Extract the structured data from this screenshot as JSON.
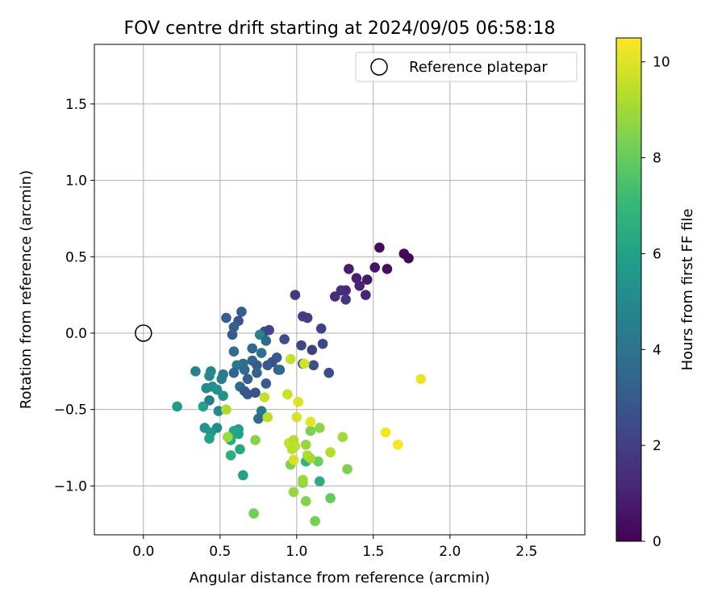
{
  "chart_data": {
    "type": "scatter",
    "title": "FOV centre drift starting at 2024/09/05 06:58:18",
    "xlabel": "Angular distance from reference (arcmin)",
    "ylabel": "Rotation from reference (arcmin)",
    "xlim": [
      -0.32,
      2.88
    ],
    "ylim": [
      -1.32,
      1.89
    ],
    "xticks": [
      0.0,
      0.5,
      1.0,
      1.5,
      2.0,
      2.5
    ],
    "xtick_labels": [
      "0.0",
      "0.5",
      "1.0",
      "1.5",
      "2.0",
      "2.5"
    ],
    "yticks": [
      -1.0,
      -0.5,
      0.0,
      0.5,
      1.0,
      1.5
    ],
    "ytick_labels": [
      "−1.0",
      "−0.5",
      "0.0",
      "0.5",
      "1.0",
      "1.5"
    ],
    "grid": true,
    "legend": {
      "position": "upper right",
      "entries": [
        {
          "label": "Reference platepar",
          "marker": "open-circle"
        }
      ]
    },
    "reference_point": {
      "x": 0.0,
      "y": 0.0
    },
    "colorbar": {
      "label": "Hours from first FF file",
      "colormap": "viridis",
      "range": [
        0,
        10.5
      ],
      "ticks": [
        0,
        2,
        4,
        6,
        8,
        10
      ],
      "tick_labels": [
        "0",
        "2",
        "4",
        "6",
        "8",
        "10"
      ],
      "colors": [
        "#440154",
        "#482878",
        "#3e4989",
        "#31688e",
        "#26828e",
        "#1f9e89",
        "#35b779",
        "#6ece58",
        "#b5de2b",
        "#fde725"
      ]
    },
    "points": [
      {
        "x": 1.54,
        "y": 0.56,
        "c": 0.3
      },
      {
        "x": 1.7,
        "y": 0.52,
        "c": 0.2
      },
      {
        "x": 1.73,
        "y": 0.49,
        "c": 0.1
      },
      {
        "x": 1.59,
        "y": 0.42,
        "c": 0.4
      },
      {
        "x": 1.51,
        "y": 0.43,
        "c": 0.6
      },
      {
        "x": 1.34,
        "y": 0.42,
        "c": 0.8
      },
      {
        "x": 1.39,
        "y": 0.36,
        "c": 0.9
      },
      {
        "x": 1.46,
        "y": 0.35,
        "c": 0.7
      },
      {
        "x": 1.41,
        "y": 0.31,
        "c": 1.0
      },
      {
        "x": 1.32,
        "y": 0.28,
        "c": 1.2
      },
      {
        "x": 1.29,
        "y": 0.28,
        "c": 1.5
      },
      {
        "x": 1.45,
        "y": 0.25,
        "c": 1.1
      },
      {
        "x": 1.25,
        "y": 0.24,
        "c": 1.3
      },
      {
        "x": 1.32,
        "y": 0.22,
        "c": 1.7
      },
      {
        "x": 0.99,
        "y": 0.25,
        "c": 1.8
      },
      {
        "x": 1.04,
        "y": 0.11,
        "c": 2.0
      },
      {
        "x": 1.07,
        "y": 0.1,
        "c": 1.9
      },
      {
        "x": 1.16,
        "y": 0.03,
        "c": 2.1
      },
      {
        "x": 0.64,
        "y": 0.14,
        "c": 3.0
      },
      {
        "x": 0.62,
        "y": 0.08,
        "c": 2.8
      },
      {
        "x": 0.54,
        "y": 0.1,
        "c": 3.2
      },
      {
        "x": 0.59,
        "y": 0.04,
        "c": 3.3
      },
      {
        "x": 0.58,
        "y": -0.01,
        "c": 3.0
      },
      {
        "x": 0.79,
        "y": 0.01,
        "c": 2.4
      },
      {
        "x": 0.82,
        "y": 0.02,
        "c": 2.2
      },
      {
        "x": 0.76,
        "y": -0.01,
        "c": 4.6
      },
      {
        "x": 0.92,
        "y": -0.04,
        "c": 2.5
      },
      {
        "x": 0.8,
        "y": -0.05,
        "c": 3.6
      },
      {
        "x": 1.03,
        "y": -0.08,
        "c": 2.2
      },
      {
        "x": 1.1,
        "y": -0.11,
        "c": 2.0
      },
      {
        "x": 1.17,
        "y": -0.07,
        "c": 2.3
      },
      {
        "x": 0.71,
        "y": -0.1,
        "c": 3.5
      },
      {
        "x": 0.59,
        "y": -0.12,
        "c": 3.8
      },
      {
        "x": 0.77,
        "y": -0.13,
        "c": 4.0
      },
      {
        "x": 0.87,
        "y": -0.16,
        "c": 3.1
      },
      {
        "x": 0.84,
        "y": -0.19,
        "c": 2.7
      },
      {
        "x": 0.71,
        "y": -0.18,
        "c": 3.4
      },
      {
        "x": 0.74,
        "y": -0.21,
        "c": 3.1
      },
      {
        "x": 0.65,
        "y": -0.2,
        "c": 3.7
      },
      {
        "x": 0.61,
        "y": -0.21,
        "c": 4.2
      },
      {
        "x": 0.81,
        "y": -0.21,
        "c": 2.9
      },
      {
        "x": 0.88,
        "y": -0.24,
        "c": 3.0
      },
      {
        "x": 1.04,
        "y": -0.2,
        "c": 2.4
      },
      {
        "x": 1.11,
        "y": -0.21,
        "c": 2.6
      },
      {
        "x": 1.21,
        "y": -0.26,
        "c": 2.5
      },
      {
        "x": 0.66,
        "y": -0.24,
        "c": 3.6
      },
      {
        "x": 0.59,
        "y": -0.26,
        "c": 3.4
      },
      {
        "x": 0.74,
        "y": -0.26,
        "c": 3.3
      },
      {
        "x": 0.89,
        "y": -0.24,
        "c": 3.5
      },
      {
        "x": 0.68,
        "y": -0.3,
        "c": 3.2
      },
      {
        "x": 0.52,
        "y": -0.27,
        "c": 4.3
      },
      {
        "x": 0.51,
        "y": -0.3,
        "c": 4.4
      },
      {
        "x": 0.44,
        "y": -0.25,
        "c": 4.8
      },
      {
        "x": 0.43,
        "y": -0.28,
        "c": 5.0
      },
      {
        "x": 0.34,
        "y": -0.25,
        "c": 4.6
      },
      {
        "x": 0.8,
        "y": -0.33,
        "c": 3.0
      },
      {
        "x": 0.63,
        "y": -0.35,
        "c": 3.6
      },
      {
        "x": 0.45,
        "y": -0.35,
        "c": 5.2
      },
      {
        "x": 0.41,
        "y": -0.36,
        "c": 4.9
      },
      {
        "x": 0.48,
        "y": -0.37,
        "c": 5.3
      },
      {
        "x": 0.66,
        "y": -0.38,
        "c": 3.0
      },
      {
        "x": 0.68,
        "y": -0.4,
        "c": 2.9
      },
      {
        "x": 0.73,
        "y": -0.39,
        "c": 2.7
      },
      {
        "x": 0.43,
        "y": -0.44,
        "c": 4.4
      },
      {
        "x": 0.52,
        "y": -0.41,
        "c": 5.4
      },
      {
        "x": 0.77,
        "y": -0.51,
        "c": 4.2
      },
      {
        "x": 0.75,
        "y": -0.56,
        "c": 3.6
      },
      {
        "x": 0.49,
        "y": -0.51,
        "c": 4.9
      },
      {
        "x": 0.22,
        "y": -0.48,
        "c": 5.8
      },
      {
        "x": 0.39,
        "y": -0.48,
        "c": 6.0
      },
      {
        "x": 0.4,
        "y": -0.62,
        "c": 5.4
      },
      {
        "x": 0.48,
        "y": -0.62,
        "c": 5.1
      },
      {
        "x": 0.44,
        "y": -0.65,
        "c": 5.5
      },
      {
        "x": 0.43,
        "y": -0.69,
        "c": 6.0
      },
      {
        "x": 0.62,
        "y": -0.63,
        "c": 5.8
      },
      {
        "x": 0.59,
        "y": -0.64,
        "c": 6.2
      },
      {
        "x": 0.62,
        "y": -0.66,
        "c": 6.0
      },
      {
        "x": 0.57,
        "y": -0.7,
        "c": 6.5
      },
      {
        "x": 0.63,
        "y": -0.76,
        "c": 6.2
      },
      {
        "x": 0.57,
        "y": -0.8,
        "c": 6.6
      },
      {
        "x": 0.65,
        "y": -0.93,
        "c": 6.0
      },
      {
        "x": 1.15,
        "y": -0.97,
        "c": 6.5
      },
      {
        "x": 1.06,
        "y": -0.84,
        "c": 6.8
      },
      {
        "x": 0.72,
        "y": -1.18,
        "c": 8.2
      },
      {
        "x": 1.12,
        "y": -1.23,
        "c": 8.3
      },
      {
        "x": 1.06,
        "y": -1.1,
        "c": 8.5
      },
      {
        "x": 1.22,
        "y": -1.08,
        "c": 8.0
      },
      {
        "x": 0.98,
        "y": -1.04,
        "c": 8.8
      },
      {
        "x": 1.04,
        "y": -0.98,
        "c": 8.6
      },
      {
        "x": 1.04,
        "y": -0.96,
        "c": 8.9
      },
      {
        "x": 1.33,
        "y": -0.89,
        "c": 8.4
      },
      {
        "x": 0.96,
        "y": -0.86,
        "c": 8.4
      },
      {
        "x": 1.14,
        "y": -0.84,
        "c": 8.1
      },
      {
        "x": 1.09,
        "y": -0.82,
        "c": 9.0
      },
      {
        "x": 1.07,
        "y": -0.8,
        "c": 9.2
      },
      {
        "x": 1.06,
        "y": -0.73,
        "c": 8.8
      },
      {
        "x": 1.09,
        "y": -0.64,
        "c": 8.4
      },
      {
        "x": 1.15,
        "y": -0.62,
        "c": 8.7
      },
      {
        "x": 1.22,
        "y": -0.78,
        "c": 9.3
      },
      {
        "x": 1.3,
        "y": -0.68,
        "c": 9.0
      },
      {
        "x": 0.95,
        "y": -0.72,
        "c": 9.6
      },
      {
        "x": 0.98,
        "y": -0.7,
        "c": 9.3
      },
      {
        "x": 0.99,
        "y": -0.74,
        "c": 9.5
      },
      {
        "x": 0.97,
        "y": -0.76,
        "c": 9.4
      },
      {
        "x": 0.98,
        "y": -0.83,
        "c": 9.8
      },
      {
        "x": 0.73,
        "y": -0.7,
        "c": 8.6
      },
      {
        "x": 0.55,
        "y": -0.68,
        "c": 8.9
      },
      {
        "x": 0.54,
        "y": -0.5,
        "c": 9.2
      },
      {
        "x": 0.79,
        "y": -0.42,
        "c": 9.6
      },
      {
        "x": 0.81,
        "y": -0.55,
        "c": 9.4
      },
      {
        "x": 0.94,
        "y": -0.4,
        "c": 9.7
      },
      {
        "x": 1.01,
        "y": -0.45,
        "c": 10.0
      },
      {
        "x": 1.0,
        "y": -0.55,
        "c": 9.9
      },
      {
        "x": 1.09,
        "y": -0.58,
        "c": 10.1
      },
      {
        "x": 0.96,
        "y": -0.17,
        "c": 9.6
      },
      {
        "x": 1.05,
        "y": -0.2,
        "c": 9.8
      },
      {
        "x": 1.81,
        "y": -0.3,
        "c": 10.2
      },
      {
        "x": 1.58,
        "y": -0.65,
        "c": 10.3
      },
      {
        "x": 1.66,
        "y": -0.73,
        "c": 10.4
      }
    ]
  }
}
